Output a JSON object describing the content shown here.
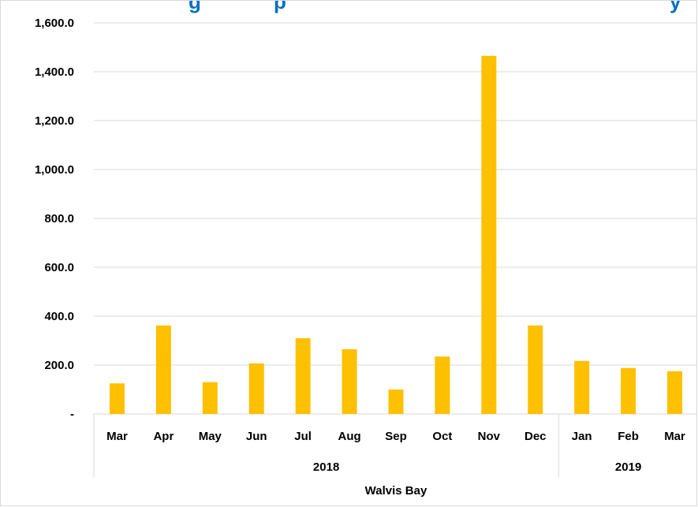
{
  "chart_data": {
    "type": "bar",
    "title": "…ng… Imports … Walvis Bay",
    "title_visible": "g    p                                        y",
    "categories": [
      "Mar",
      "Apr",
      "May",
      "Jun",
      "Jul",
      "Aug",
      "Sep",
      "Oct",
      "Nov",
      "Dec",
      "Jan",
      "Feb",
      "Mar"
    ],
    "year_groups": [
      {
        "label": "2018",
        "count": 10
      },
      {
        "label": "2019",
        "count": 3
      }
    ],
    "outer_group_label": "Walvis Bay",
    "values": [
      125,
      362,
      130,
      207,
      310,
      265,
      100,
      235,
      1465,
      362,
      217,
      188,
      175
    ],
    "ylim": [
      0,
      1600
    ],
    "yticks": [
      0,
      200,
      400,
      600,
      800,
      1000,
      1200,
      1400,
      1600
    ],
    "ytick_labels": [
      "-",
      "200.0",
      "400.0",
      "600.0",
      "800.0",
      "1,000.0",
      "1,200.0",
      "1,400.0",
      "1,600.0"
    ],
    "bar_color": "#ffc000",
    "grid": true,
    "legend": "none"
  }
}
